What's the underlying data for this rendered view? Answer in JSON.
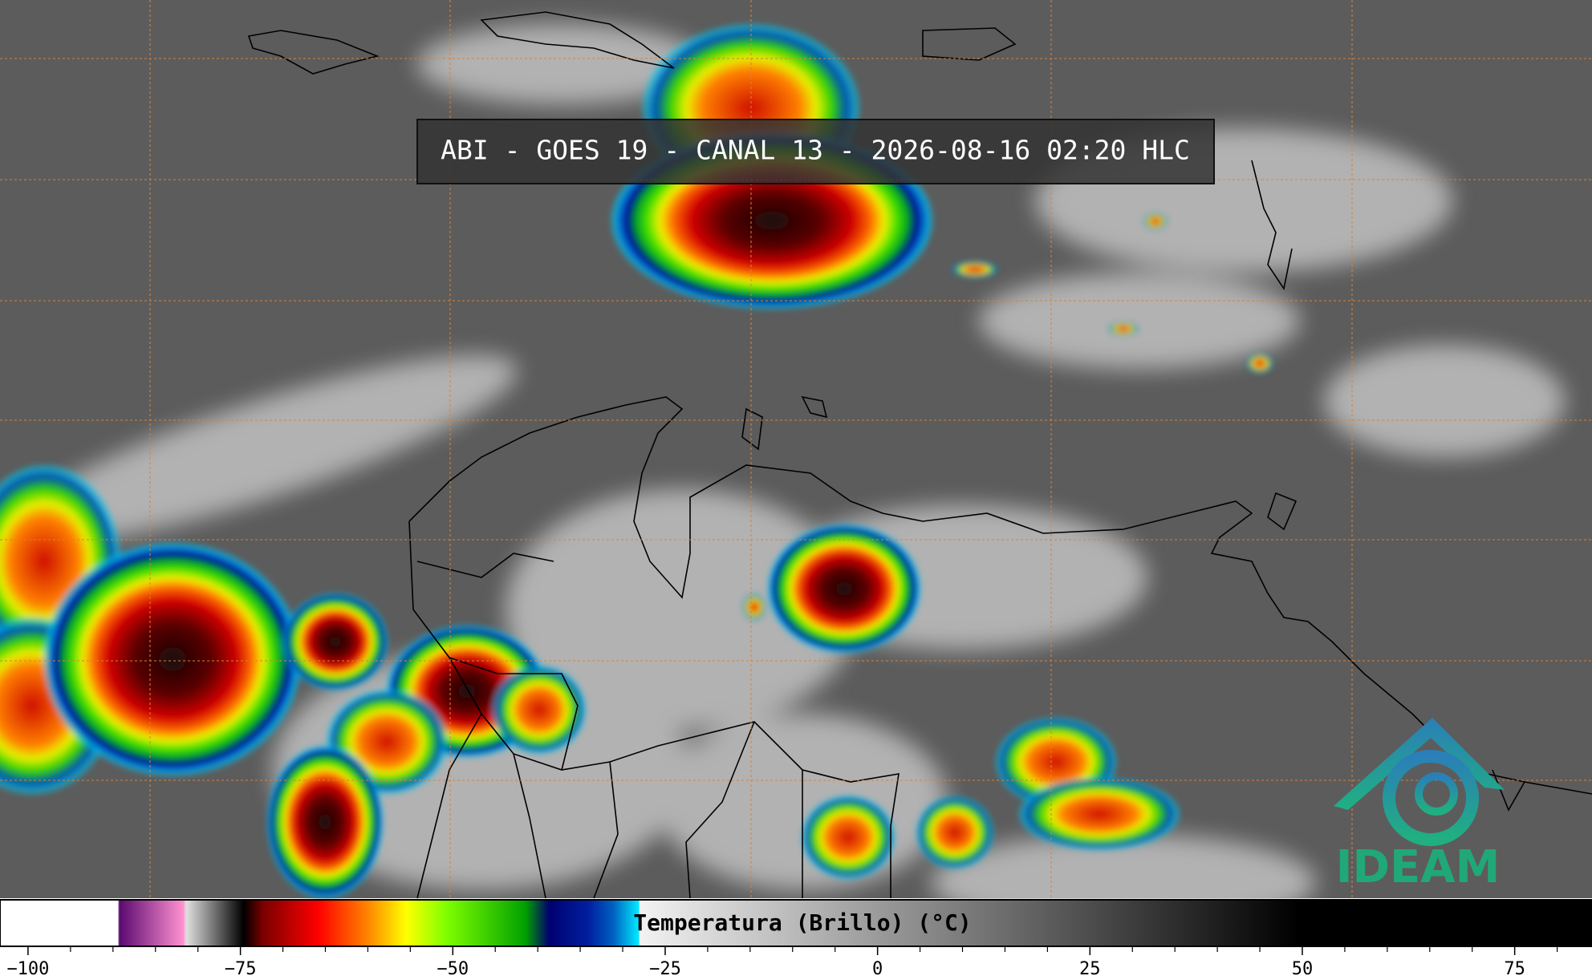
{
  "header": {
    "title": "ABI - GOES 19 - CANAL 13 - 2026-08-16 02:20 HLC"
  },
  "colorbar": {
    "label": "Temperatura (Brillo) (°C)",
    "xlim": [
      -103.3,
      84.1
    ],
    "xticks": [
      {
        "value": -100,
        "label": "−100"
      },
      {
        "value": -75,
        "label": "−75"
      },
      {
        "value": -50,
        "label": "−50"
      },
      {
        "value": -25,
        "label": "−25"
      },
      0,
      25,
      50,
      75
    ],
    "minor_xticks": [
      -95,
      -90,
      -85,
      -80,
      -70,
      -65,
      -60,
      -55,
      -45,
      -40,
      -35,
      -30,
      -20,
      -15,
      -10,
      -5,
      5,
      10,
      15,
      20,
      30,
      35,
      40,
      45,
      55,
      60,
      65,
      70,
      80
    ]
  },
  "logo": {
    "text": "IDEAM"
  }
}
